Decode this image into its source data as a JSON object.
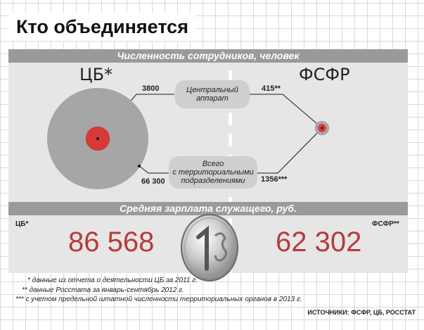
{
  "title": "Кто объединяется",
  "section1": "Численность сотрудников, человек",
  "section2": "Средняя зарплата служащего, руб.",
  "org_left": "ЦБ*",
  "org_right": "ФСФР",
  "central_label": "Центральный\nаппарат",
  "total_label": "Всего\nс территориальными\nподразделениями",
  "salary_left_label": "ЦБ*",
  "salary_right_label": "ФСФР**",
  "notes": [
    "*   данные из отчета о деятельности ЦБ за 2011 г.",
    "**  данные Росстата за январь-сентябрь 2012 г.",
    "*** с учетом предельной штатной численности территориальных органов в 2013 г."
  ],
  "source": "ИСТОЧНИКИ: ФСФР, ЦБ, РОССТАТ",
  "colors": {
    "central": "#d6393a",
    "total": "#a6a6a6",
    "salary": "#b83a3a",
    "bar": "#9a9a9a",
    "panel": "#e6e6e6"
  },
  "chart_data": [
    {
      "type": "bubble",
      "title": "Численность сотрудников, человек",
      "categories": [
        "Центральный аппарат",
        "Всего с территориальными подразделениями"
      ],
      "series": [
        {
          "name": "ЦБ*",
          "values": [
            3800,
            66300
          ],
          "labels": [
            "3800",
            "66 300"
          ]
        },
        {
          "name": "ФСФР",
          "values": [
            415,
            1356
          ],
          "labels": [
            "415**",
            "1356***"
          ]
        }
      ]
    },
    {
      "type": "table",
      "title": "Средняя зарплата служащего, руб.",
      "categories": [
        "ЦБ*",
        "ФСФР**"
      ],
      "values": [
        86568,
        62302
      ],
      "labels": [
        "86 568",
        "62 302"
      ]
    }
  ],
  "coin_icon": "ruble-coin-icon"
}
